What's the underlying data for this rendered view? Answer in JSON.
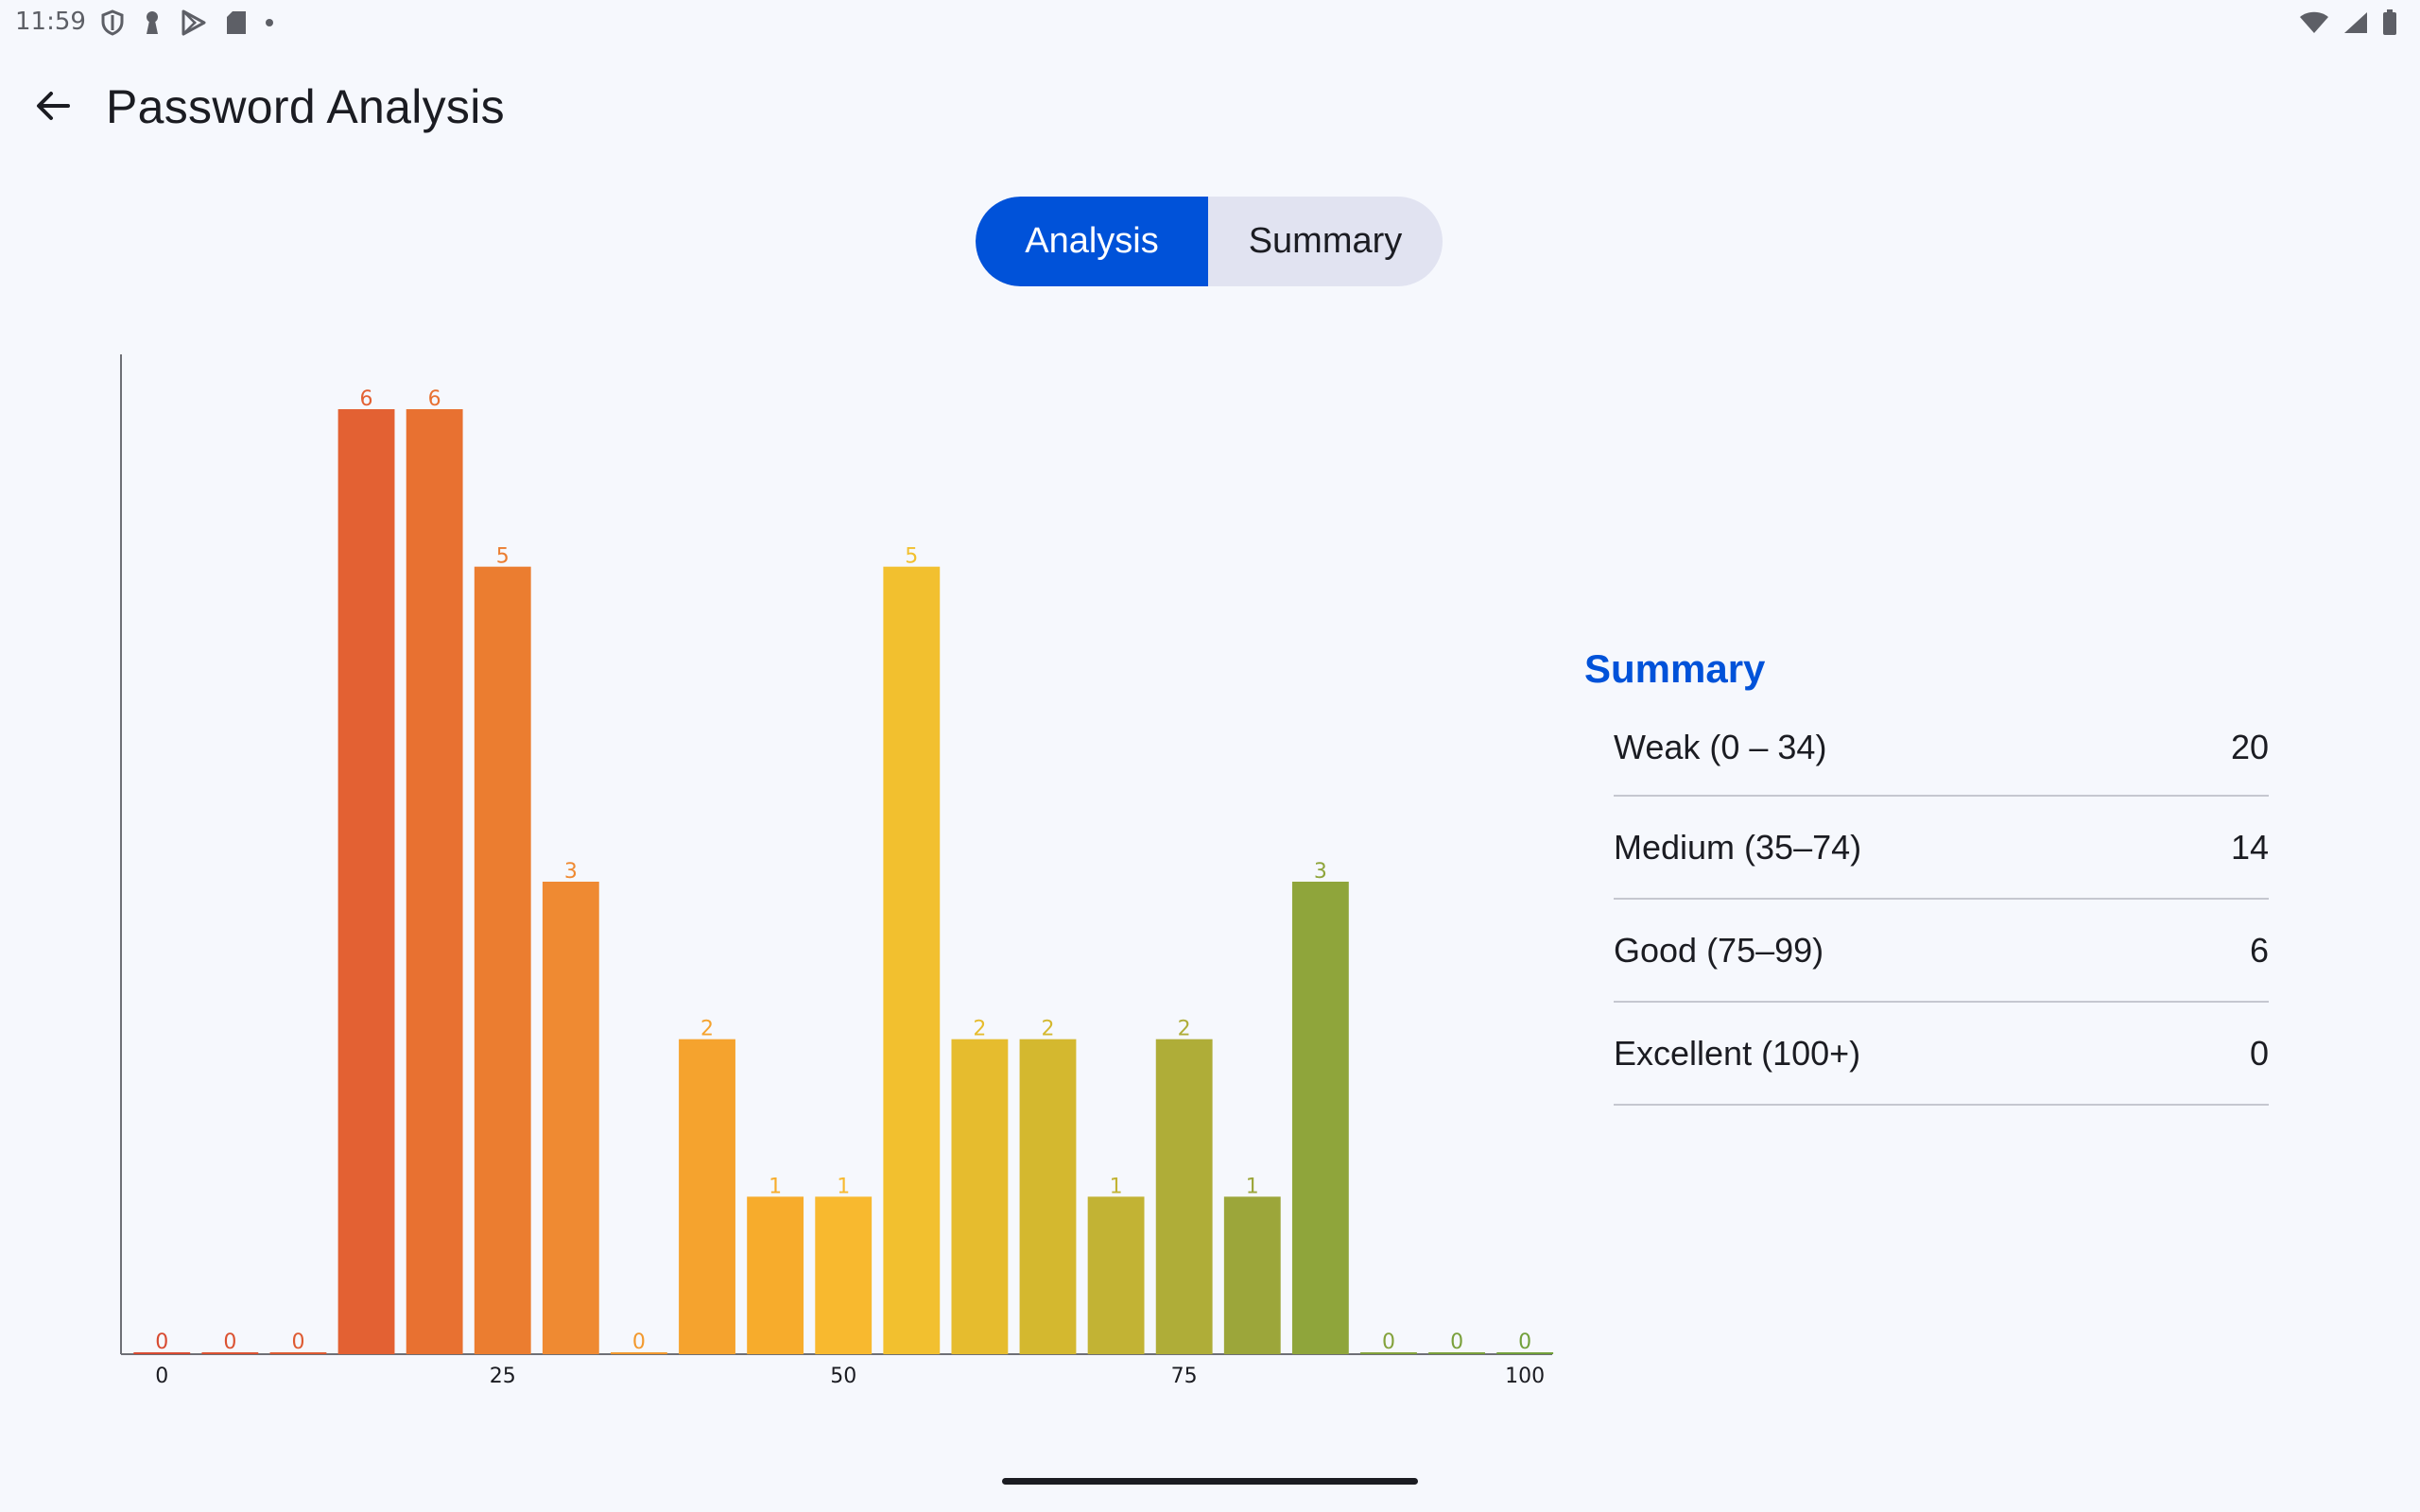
{
  "status_bar": {
    "time": "11:59",
    "left_icons": [
      "shield-icon",
      "keyhole-icon",
      "play-store-icon",
      "sd-card-icon",
      "dot-icon"
    ],
    "right_icons": [
      "wifi-icon",
      "signal-icon",
      "battery-icon"
    ]
  },
  "app_bar": {
    "back_icon": "arrow-back-icon",
    "title": "Password Analysis"
  },
  "tabs": [
    {
      "label": "Analysis",
      "selected": true
    },
    {
      "label": "Summary",
      "selected": false
    }
  ],
  "colors": {
    "accent": "#0052D9",
    "tab_inactive_bg": "#E1E3F1",
    "background": "#F6F8FD"
  },
  "chart_data": {
    "type": "bar",
    "title": "",
    "xlabel": "",
    "ylabel": "",
    "x_ticks": [
      0,
      25,
      50,
      75,
      100
    ],
    "xlim": [
      -3,
      102
    ],
    "ylim": [
      0,
      6.3
    ],
    "grid": false,
    "legend": "none",
    "bin_width": 5,
    "x": [
      0,
      5,
      10,
      15,
      20,
      25,
      30,
      35,
      40,
      45,
      50,
      55,
      60,
      65,
      70,
      75,
      80,
      85,
      90,
      95,
      100
    ],
    "values": [
      0,
      0,
      0,
      6,
      6,
      5,
      3,
      0,
      2,
      1,
      1,
      5,
      2,
      2,
      1,
      2,
      1,
      3,
      0,
      0,
      0
    ],
    "colors": [
      "#D84B31",
      "#DB5231",
      "#DE5A31",
      "#E36133",
      "#E87131",
      "#EB7D30",
      "#EF8A32",
      "#F2992E",
      "#F5A32E",
      "#F7AC2C",
      "#F8B92F",
      "#F2C02F",
      "#E6BC2E",
      "#D4B82F",
      "#C2B334",
      "#AFAD38",
      "#9CA63A",
      "#8FA53B",
      "#83A23B",
      "#7AA03B",
      "#72A03B"
    ]
  },
  "summary": {
    "title": "Summary",
    "rows": [
      {
        "label": "Weak (0 – 34)",
        "value": "20"
      },
      {
        "label": "Medium (35–74)",
        "value": "14"
      },
      {
        "label": "Good (75–99)",
        "value": "6"
      },
      {
        "label": "Excellent (100+)",
        "value": "0"
      }
    ]
  }
}
